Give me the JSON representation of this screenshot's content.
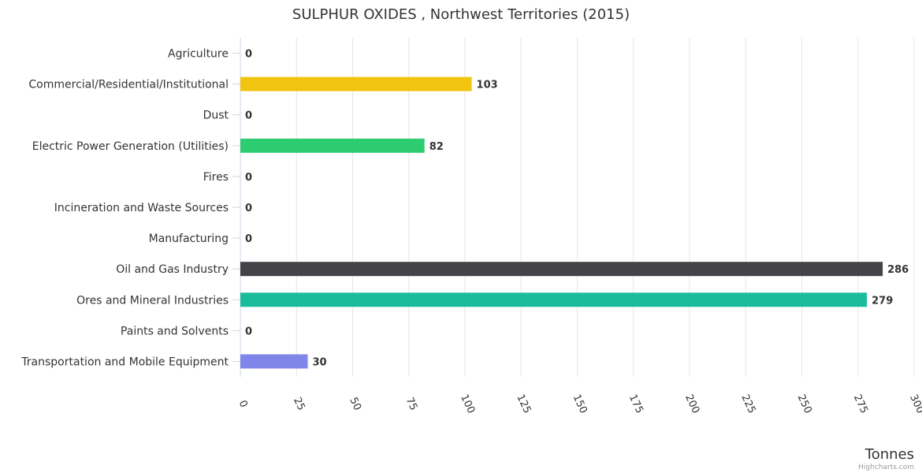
{
  "chart_data": {
    "type": "bar",
    "orientation": "horizontal",
    "title": "SULPHUR OXIDES , Northwest Territories (2015)",
    "xlabel": "Tonnes",
    "ylabel": "",
    "xlim": [
      0,
      300
    ],
    "ticks": [
      0,
      25,
      50,
      75,
      100,
      125,
      150,
      175,
      200,
      225,
      250,
      275,
      300
    ],
    "grid": true,
    "categories": [
      "Agriculture",
      "Commercial/Residential/Institutional",
      "Dust",
      "Electric Power Generation (Utilities)",
      "Fires",
      "Incineration and Waste Sources",
      "Manufacturing",
      "Oil and Gas Industry",
      "Ores and Mineral Industries",
      "Paints and Solvents",
      "Transportation and Mobile Equipment"
    ],
    "values": [
      0,
      103,
      0,
      82,
      0,
      0,
      0,
      286,
      279,
      0,
      30
    ],
    "colors": [
      "#7cb5ec",
      "#f1c40f",
      "#2c3e50",
      "#2ecc71",
      "#e74c3c",
      "#9b59b6",
      "#e67e22",
      "#434348",
      "#1abc9c",
      "#f15c80",
      "#8085e9"
    ]
  },
  "credits": "Highcharts.com"
}
